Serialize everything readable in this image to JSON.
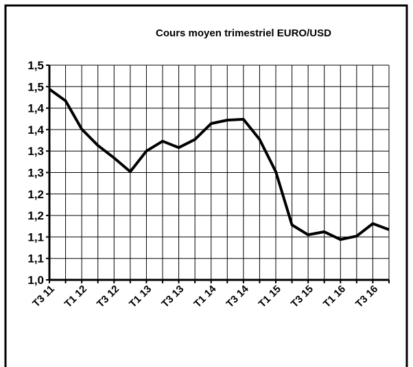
{
  "chart_data": {
    "type": "line",
    "title": "Cours moyen trimestriel EURO/USD",
    "categories": [
      "T3 11",
      null,
      "T1 12",
      null,
      "T3 12",
      null,
      "T1 13",
      null,
      "T3 13",
      null,
      "T1 14",
      null,
      "T3 14",
      null,
      "T1 15",
      null,
      "T3 15",
      null,
      "T1 16",
      null,
      "T3 16",
      null
    ],
    "values": [
      1.444,
      1.417,
      1.351,
      1.313,
      1.284,
      1.252,
      1.3,
      1.323,
      1.308,
      1.327,
      1.364,
      1.372,
      1.374,
      1.327,
      1.252,
      1.128,
      1.105,
      1.112,
      1.094,
      1.102,
      1.131,
      1.117
    ],
    "color": "#000000",
    "ylim": [
      1.0,
      1.5
    ],
    "yticks": [
      {
        "value": 1.0,
        "label": "1,0"
      },
      {
        "value": 1.05,
        "label": "1,1"
      },
      {
        "value": 1.1,
        "label": "1,1"
      },
      {
        "value": 1.15,
        "label": "1,2"
      },
      {
        "value": 1.2,
        "label": "1,2"
      },
      {
        "value": 1.25,
        "label": "1,3"
      },
      {
        "value": 1.3,
        "label": "1,3"
      },
      {
        "value": 1.35,
        "label": "1,4"
      },
      {
        "value": 1.4,
        "label": "1,4"
      },
      {
        "value": 1.45,
        "label": "1,5"
      },
      {
        "value": 1.5,
        "label": "1,5"
      }
    ],
    "grid": true
  }
}
